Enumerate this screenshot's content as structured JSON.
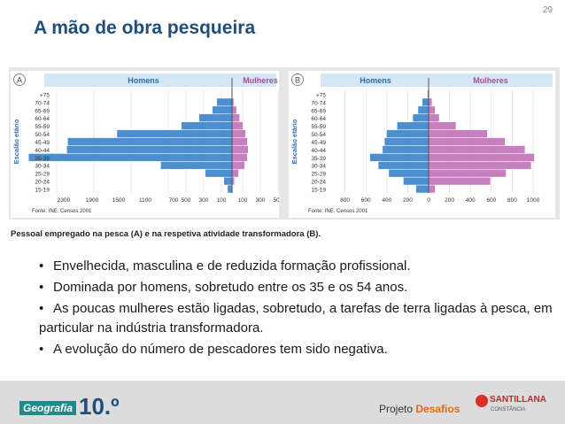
{
  "header": {
    "page_number": "29",
    "title": "A mão de obra pesqueira"
  },
  "chart_data": [
    {
      "type": "bar",
      "panel_label": "A",
      "ylabel": "Escalão etário",
      "source": "Fonte: INE, Censos 2001",
      "categories": [
        "15-19",
        "20-24",
        "25-29",
        "30-34",
        "35-39",
        "40-44",
        "45-49",
        "50-54",
        "55-59",
        "60-64",
        "65-69",
        "70-74",
        "+75"
      ],
      "x_ticks": [
        "2300",
        "1900",
        "1500",
        "1100",
        "700",
        "500",
        "300",
        "100",
        "100",
        "300",
        "500"
      ],
      "series": [
        {
          "name": "Homens",
          "color": "#4b8fd0",
          "values": [
            40,
            75,
            280,
            780,
            2200,
            1790,
            1780,
            1250,
            550,
            350,
            200,
            150,
            5
          ]
        },
        {
          "name": "Mulheres",
          "color": "#c77fbf",
          "values": [
            5,
            20,
            60,
            120,
            150,
            160,
            150,
            130,
            100,
            70,
            40,
            15,
            3
          ]
        }
      ]
    },
    {
      "type": "bar",
      "panel_label": "B",
      "ylabel": "Escalão etário",
      "source": "Fonte: INE, Censos 2001",
      "categories": [
        "15-19",
        "20-24",
        "25-29",
        "30-34",
        "35-39",
        "40-44",
        "45-49",
        "50-54",
        "55-59",
        "60-64",
        "65-69",
        "70-74",
        "+75"
      ],
      "x_ticks": [
        "800",
        "600",
        "400",
        "200",
        "0",
        "200",
        "400",
        "600",
        "800",
        "1000"
      ],
      "series": [
        {
          "name": "Homens",
          "color": "#4b8fd0",
          "values": [
            120,
            240,
            380,
            480,
            560,
            440,
            420,
            400,
            300,
            150,
            100,
            60,
            10
          ]
        },
        {
          "name": "Mulheres",
          "color": "#c77fbf",
          "values": [
            60,
            590,
            740,
            980,
            1010,
            920,
            730,
            560,
            260,
            100,
            60,
            30,
            5
          ]
        }
      ]
    }
  ],
  "caption": "Pessoal empregado na pesca (A) e na respetiva atividade transformadora (B).",
  "bullet_marker": "•",
  "bullets": [
    "Envelhecida, masculina e de reduzida formação profissional.",
    "Dominada por homens, sobretudo entre os 35 e os 54 anos.",
    "As poucas mulheres estão ligadas, sobretudo, a tarefas de terra ligadas à pesca, em particular na indústria transformadora.",
    "A evolução do número de pescadores tem sido negativa."
  ],
  "footer": {
    "subject": "Geografia",
    "grade": "10.º",
    "project_prefix": "Projeto ",
    "project_name": "Desafios",
    "publisher": "SANTILLANA",
    "publisher_sub": "CONSTÂNCIA"
  }
}
